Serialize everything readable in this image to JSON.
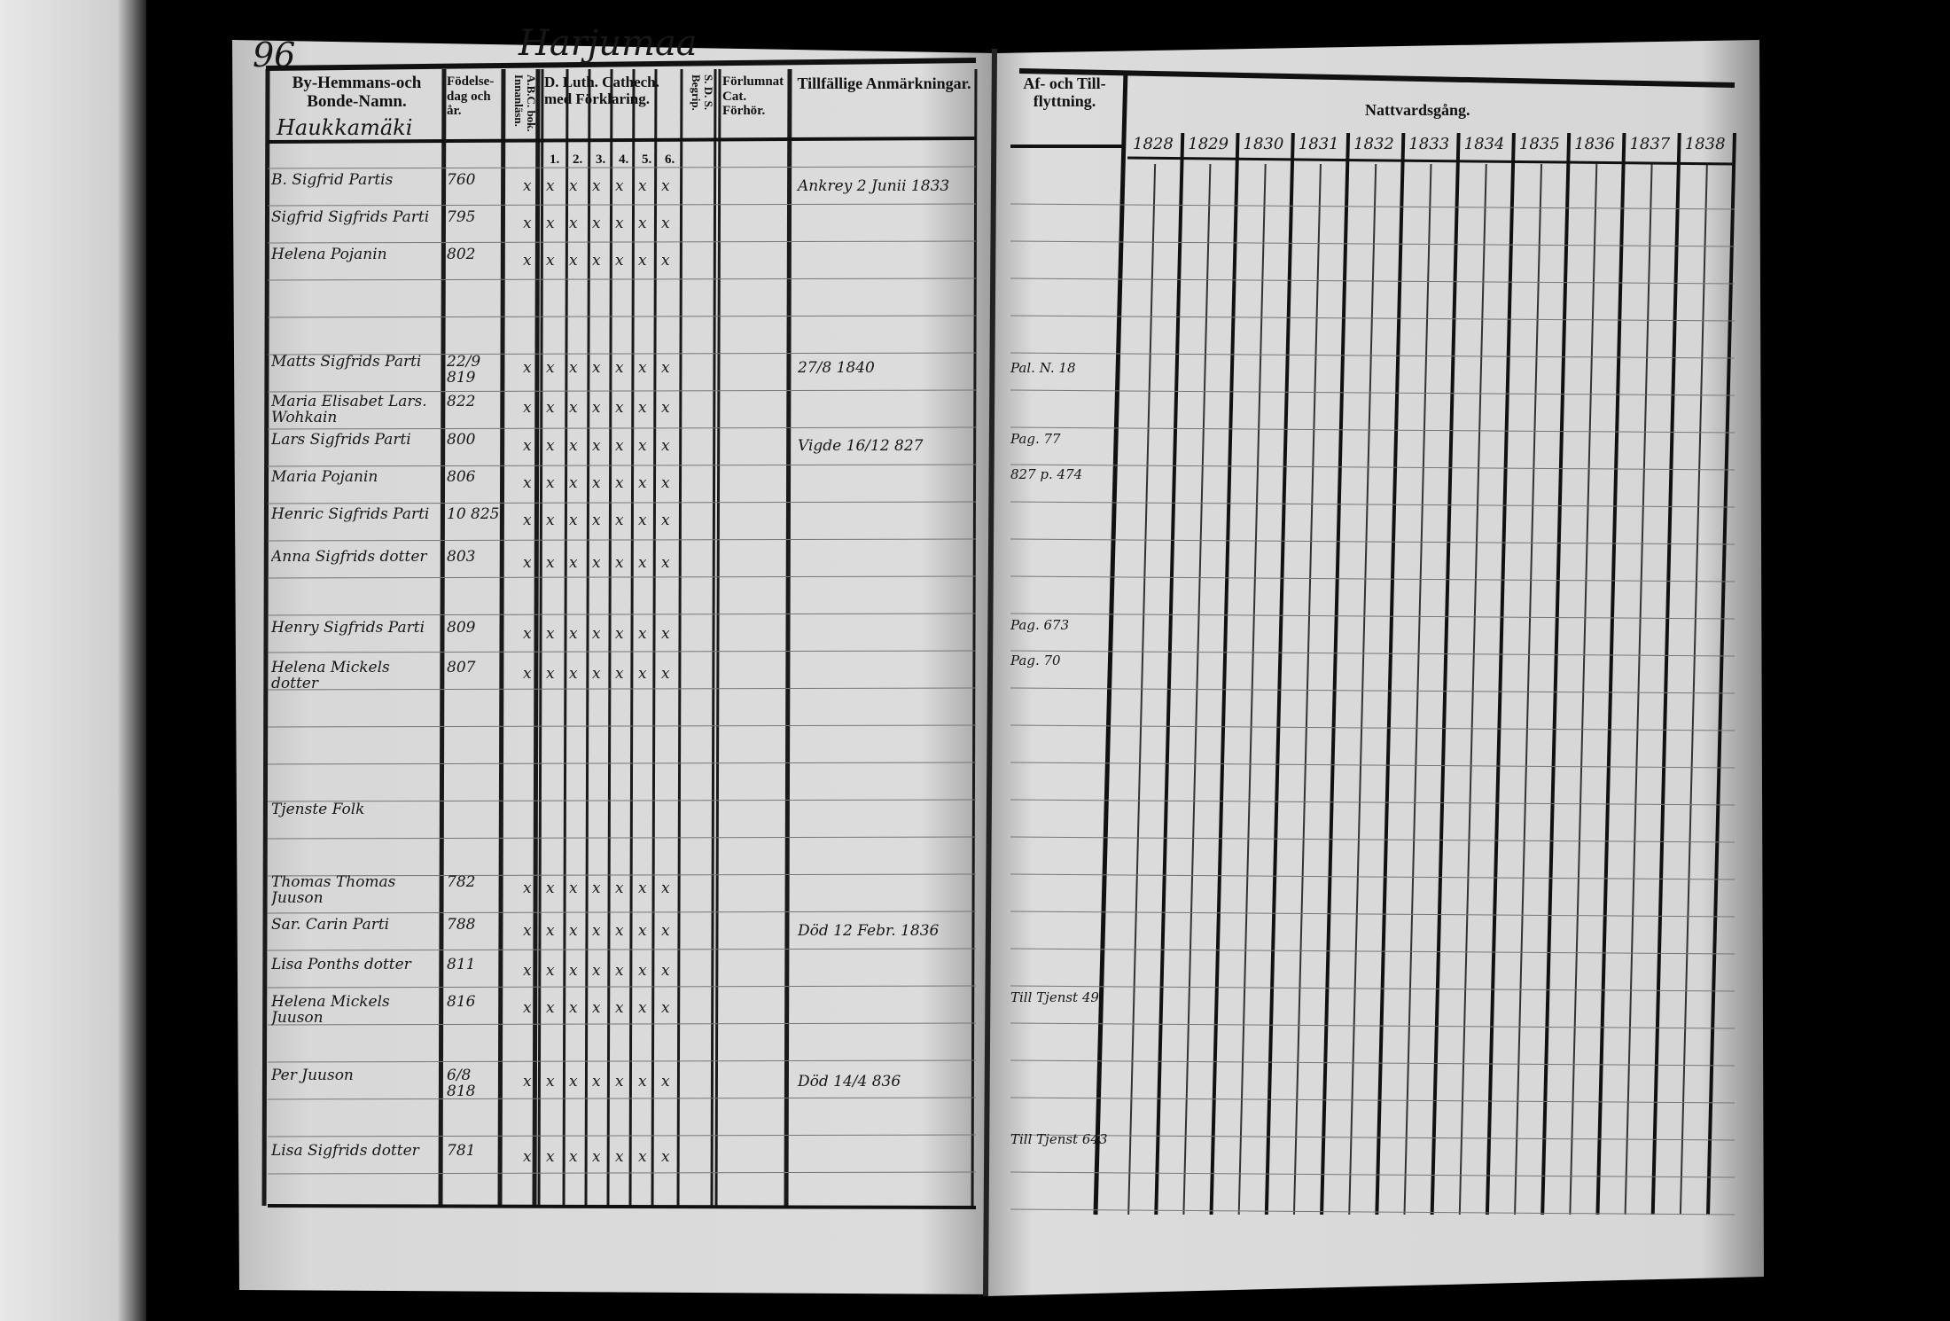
{
  "document": {
    "page_number": "96",
    "parish_heading": "Harjumaa",
    "left_page": {
      "headers": {
        "names": "By-Hemmans-och Bonde-Namn.",
        "birth": "Födelse-dag och år.",
        "abc_book": "A.B.C. bok. Innanläsn.",
        "catechism": "D. Luth. Cathech. med Förklaring.",
        "catechism_cols": [
          "1.",
          "2.",
          "3.",
          "4.",
          "5.",
          "6."
        ],
        "sds": "S. D. S. Begrip.",
        "confirmation": "Förlumnat Cat. Förhör.",
        "remarks": "Tillfällige Anmärkningar."
      },
      "farm_name": "Haukkamäki",
      "rows": [
        {
          "name": "B. Sigfrid Partis",
          "birth": "760",
          "remark": "Ankrey 2 Junii 1833"
        },
        {
          "name": "Sigfrid Sigfrids Parti",
          "birth": "795",
          "remark": ""
        },
        {
          "name": "Helena Pojanin",
          "birth": "802",
          "remark": ""
        },
        {
          "name": "Matts Sigfrids Parti",
          "birth": "22/9 819",
          "remark": "27/8 1840"
        },
        {
          "name": "Maria Elisabet Lars. Wohkain",
          "birth": "822",
          "remark": ""
        },
        {
          "name": "Lars Sigfrids Parti",
          "birth": "800",
          "remark": "Vigde 16/12 827"
        },
        {
          "name": "Maria Pojanin",
          "birth": "806",
          "remark": ""
        },
        {
          "name": "Henric Sigfrids Parti",
          "birth": "10 825",
          "remark": ""
        },
        {
          "name": "Anna Sigfrids dotter",
          "birth": "803",
          "remark": ""
        },
        {
          "name": "Henry Sigfrids Parti",
          "birth": "809",
          "remark": ""
        },
        {
          "name": "Helena Mickels dotter",
          "birth": "807",
          "remark": ""
        },
        {
          "name": "Tjenste Folk",
          "birth": "",
          "remark": ""
        },
        {
          "name": "Thomas Thomas Juuson",
          "birth": "782",
          "remark": ""
        },
        {
          "name": "Sar. Carin Parti",
          "birth": "788",
          "remark": "Död 12 Febr. 1836"
        },
        {
          "name": "Lisa Ponths dotter",
          "birth": "811",
          "remark": ""
        },
        {
          "name": "Helena Mickels Juuson",
          "birth": "816",
          "remark": ""
        },
        {
          "name": "Per Juuson",
          "birth": "6/8 818",
          "remark": "Död 14/4 836"
        },
        {
          "name": "Lisa Sigfrids dotter",
          "birth": "781",
          "remark": ""
        }
      ]
    },
    "right_page": {
      "headers": {
        "moving": "Af- och Till- flyttning.",
        "communion": "Nattvardsgång."
      },
      "years": [
        "1828",
        "1829",
        "1830",
        "1831",
        "1832",
        "1833",
        "1834",
        "1835",
        "1836",
        "1837",
        "1838"
      ],
      "moving_notes": [
        "Pal. N. 18",
        "Pag. 77",
        "827 p. 474",
        "Pag. 673",
        "Pag. 70",
        "Till Tjenst 49",
        "Till Tjenst 643"
      ]
    },
    "colors": {
      "paper": "#d9d9d9",
      "ink": "#111111",
      "background": "#000000"
    }
  }
}
